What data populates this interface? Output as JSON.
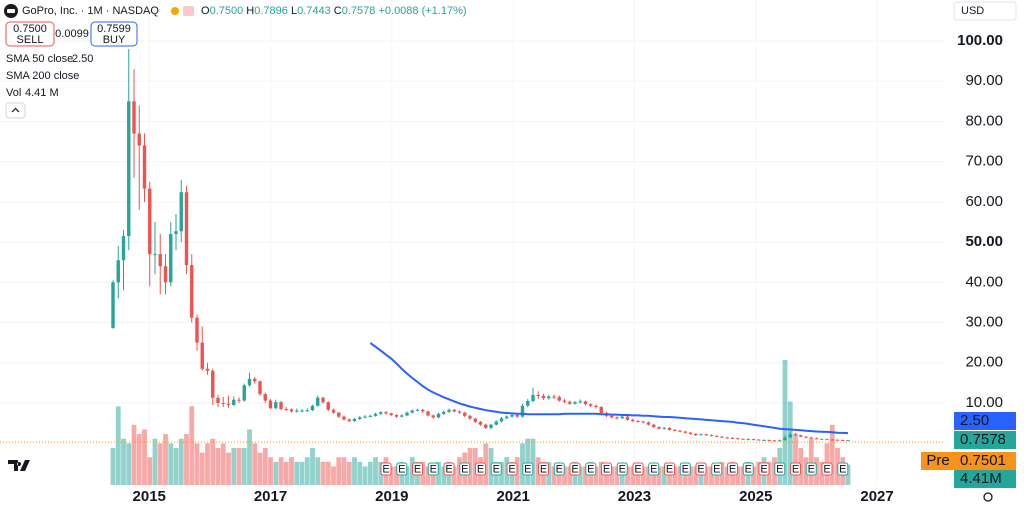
{
  "header": {
    "symbol": "GoPro, Inc.",
    "interval": "1M",
    "exchange": "NASDAQ",
    "ohlc": [
      {
        "label": "O",
        "value": "0.7500"
      },
      {
        "label": "H",
        "value": "0.7896"
      },
      {
        "label": "L",
        "value": "0.7443"
      },
      {
        "label": "C",
        "value": "0.7578"
      }
    ],
    "change": "+0.0088 (+1.17%)"
  },
  "trade": {
    "sell_price": "0.7500",
    "sell_label": "SELL",
    "spread": "0.0099",
    "buy_price": "0.7599",
    "buy_label": "BUY"
  },
  "indicators": [
    {
      "name": "SMA 50 close",
      "value": "2.50"
    },
    {
      "name": "SMA 200 close"
    },
    {
      "name": "Vol",
      "value": "4.41 M"
    }
  ],
  "currency": "USD",
  "chart_data": {
    "type": "candlestick",
    "open": [
      28.6,
      40.0,
      45.5,
      51.5,
      85.0,
      77.0,
      74.0,
      63.3,
      47.0,
      47.0,
      44.0,
      40.0,
      52.0,
      52.7,
      62.4,
      44.3,
      31.2,
      25.0,
      18.5,
      18.0,
      11.3,
      10.0,
      9.8,
      9.5,
      10.8,
      10.6,
      14.4,
      16.0,
      15.4,
      12.2,
      10.6,
      8.7,
      10.2,
      8.5,
      8.4,
      7.9,
      8.1,
      8.1,
      8.2,
      9.3,
      11.3,
      10.2,
      8.3,
      7.6,
      6.6,
      5.9,
      5.5,
      6.0,
      6.4,
      6.6,
      6.8,
      7.3,
      7.7,
      7.4,
      7.0,
      6.6,
      6.9,
      7.6,
      8.1,
      8.3,
      7.9,
      6.9,
      6.4,
      7.3,
      7.8,
      8.3,
      7.9,
      7.6,
      6.8,
      6.1,
      5.3,
      4.6,
      3.8,
      4.6,
      5.4,
      6.2,
      6.6,
      7.0,
      6.6,
      9.3,
      10.5,
      12.0,
      11.8,
      11.2,
      11.6,
      11.5,
      10.6,
      10.3,
      9.8,
      10.2,
      10.4,
      9.7,
      9.3,
      9.0,
      7.5,
      6.8,
      6.4,
      6.2,
      6.6,
      5.8,
      5.5,
      5.4,
      5.2,
      4.6,
      4.0,
      3.6,
      3.8,
      3.3,
      3.1,
      2.9,
      2.6,
      2.3,
      2.0,
      2.2,
      2.0,
      1.8,
      1.6,
      1.4,
      1.3,
      1.2,
      1.1,
      1.0,
      1.0,
      0.9,
      0.8,
      0.8,
      0.7,
      0.6,
      0.7,
      1.4,
      2.2,
      2.0,
      1.6,
      1.4,
      1.2,
      1.1,
      1.0,
      0.9,
      0.85,
      0.8,
      0.75
    ],
    "high": [
      40.5,
      49,
      53,
      98,
      93,
      84,
      77,
      65,
      55,
      52,
      47,
      55,
      57,
      65.5,
      64,
      47,
      32,
      29,
      20,
      18.5,
      12,
      11.5,
      11.8,
      11.6,
      11.4,
      14.8,
      17.5,
      16.5,
      15.6,
      12.6,
      11,
      10.8,
      10.5,
      9,
      8.7,
      8.6,
      8.5,
      8.7,
      9.6,
      11.8,
      11.5,
      10.4,
      8.6,
      7.8,
      6.9,
      6.2,
      6.3,
      6.8,
      7.0,
      7.1,
      7.6,
      8.0,
      8.0,
      7.6,
      7.2,
      7.2,
      7.9,
      8.4,
      8.6,
      8.5,
      8.1,
      7.1,
      7.6,
      8.1,
      8.6,
      8.5,
      8.1,
      7.8,
      7.0,
      6.3,
      5.5,
      4.9,
      4.8,
      5.7,
      6.5,
      6.9,
      7.3,
      7.3,
      9.8,
      11.0,
      13.8,
      12.9,
      12.3,
      12.0,
      12.1,
      11.9,
      11.0,
      10.6,
      10.5,
      10.9,
      10.6,
      9.9,
      9.6,
      9.2,
      7.8,
      7.0,
      6.7,
      6.8,
      6.8,
      6.1,
      5.8,
      5.6,
      5.4,
      4.8,
      4.2,
      4.0,
      4.0,
      3.5,
      3.3,
      3.1,
      2.8,
      2.5,
      2.4,
      2.4,
      2.2,
      2.0,
      1.8,
      1.6,
      1.5,
      1.4,
      1.2,
      1.2,
      1.1,
      1.0,
      0.95,
      0.9,
      0.8,
      0.9,
      2.0,
      2.9,
      2.6,
      2.1,
      1.8,
      1.6,
      1.4,
      1.2,
      1.1,
      1.0,
      0.95,
      0.88,
      0.7896
    ],
    "low": [
      28.5,
      36,
      38,
      48,
      66,
      58,
      60,
      39,
      42,
      37,
      37,
      39,
      48,
      50,
      42,
      30,
      23,
      18,
      17,
      9.5,
      9.0,
      9.0,
      8.8,
      9.2,
      10.0,
      10.3,
      14.0,
      14.8,
      11.8,
      10.0,
      8.5,
      8.5,
      8.2,
      8.0,
      7.6,
      7.6,
      7.7,
      7.8,
      8.0,
      9.1,
      9.8,
      8.0,
      7.3,
      6.3,
      5.6,
      5.2,
      5.3,
      5.8,
      6.2,
      6.4,
      6.6,
      7.0,
      7.1,
      6.7,
      6.3,
      6.4,
      6.7,
      7.4,
      7.9,
      7.5,
      6.6,
      6.1,
      6.2,
      7.0,
      7.5,
      7.6,
      7.3,
      6.5,
      5.8,
      5.0,
      4.3,
      3.5,
      3.4,
      4.4,
      5.2,
      6.0,
      6.4,
      6.3,
      6.4,
      8.9,
      10.1,
      11.0,
      10.8,
      10.8,
      11.0,
      10.3,
      9.9,
      9.5,
      9.6,
      9.9,
      9.4,
      9.0,
      8.6,
      7.2,
      6.5,
      6.1,
      5.9,
      6.0,
      5.6,
      5.2,
      5.1,
      4.9,
      4.4,
      3.8,
      3.4,
      3.4,
      3.1,
      2.9,
      2.7,
      2.4,
      2.1,
      1.8,
      1.9,
      1.8,
      1.7,
      1.5,
      1.3,
      1.2,
      1.1,
      1.0,
      0.9,
      0.9,
      0.85,
      0.75,
      0.7,
      0.65,
      0.55,
      0.58,
      0.7,
      1.3,
      1.8,
      1.5,
      1.3,
      1.1,
      1.0,
      0.9,
      0.85,
      0.8,
      0.74,
      0.7,
      0.7443
    ],
    "close": [
      40.0,
      45.5,
      51.5,
      85.0,
      77.0,
      74.0,
      63.3,
      47.0,
      47.0,
      44.0,
      40.0,
      52.0,
      52.7,
      62.4,
      44.3,
      31.2,
      25.0,
      18.5,
      18.0,
      11.3,
      10.0,
      9.8,
      9.5,
      10.8,
      10.6,
      14.4,
      16.0,
      15.4,
      12.2,
      10.6,
      8.7,
      10.2,
      8.5,
      8.4,
      7.9,
      8.1,
      8.1,
      8.2,
      9.3,
      11.3,
      10.2,
      8.3,
      7.6,
      6.6,
      5.9,
      5.5,
      6.0,
      6.4,
      6.6,
      6.8,
      7.3,
      7.7,
      7.4,
      7.0,
      6.6,
      6.9,
      7.6,
      8.1,
      8.3,
      7.9,
      6.9,
      6.4,
      7.3,
      7.8,
      8.3,
      7.9,
      7.6,
      6.8,
      6.1,
      5.3,
      4.6,
      3.8,
      4.6,
      5.4,
      6.2,
      6.6,
      7.0,
      6.6,
      9.3,
      10.5,
      12.0,
      11.8,
      11.2,
      11.6,
      11.5,
      10.6,
      10.3,
      9.8,
      10.2,
      10.4,
      9.7,
      9.3,
      9.0,
      7.5,
      6.8,
      6.4,
      6.2,
      6.6,
      5.8,
      5.5,
      5.4,
      5.2,
      4.6,
      4.0,
      3.6,
      3.8,
      3.3,
      3.1,
      2.9,
      2.6,
      2.3,
      2.0,
      2.2,
      2.0,
      1.8,
      1.6,
      1.4,
      1.3,
      1.2,
      1.1,
      1.0,
      1.0,
      0.9,
      0.8,
      0.8,
      0.7,
      0.6,
      0.7,
      1.4,
      2.2,
      2.0,
      1.6,
      1.4,
      1.2,
      1.1,
      1.0,
      0.9,
      0.85,
      0.8,
      0.749,
      0.7578
    ],
    "volume": [
      8,
      17,
      10,
      9,
      13,
      11,
      12,
      6,
      10,
      9,
      11,
      9,
      8,
      10,
      11,
      17,
      9,
      7,
      9,
      10,
      8,
      9,
      7,
      8,
      8,
      8,
      12,
      9,
      7,
      8,
      6,
      5,
      6,
      5,
      6,
      5,
      5,
      6,
      8,
      6,
      5,
      5,
      4,
      6,
      6,
      5,
      6,
      5,
      4,
      5,
      6,
      5,
      6,
      4,
      4,
      5,
      4,
      6,
      5,
      5,
      4,
      4,
      5,
      4,
      5,
      4,
      6,
      7,
      8,
      8,
      6,
      9,
      8,
      5,
      5,
      6,
      5,
      6,
      9,
      10,
      10,
      6,
      5,
      5,
      4,
      4,
      4,
      4,
      5,
      4,
      4,
      5,
      4,
      5,
      4,
      4,
      4,
      4,
      4,
      4,
      4,
      4,
      4,
      4,
      4,
      4,
      4,
      4,
      4,
      4,
      4,
      4,
      4,
      4,
      4,
      4,
      5,
      4,
      5,
      4,
      4,
      5,
      4,
      5,
      6,
      5,
      6,
      8,
      27,
      18,
      11,
      8,
      6,
      10,
      6,
      5,
      9,
      13,
      8,
      6,
      4.41
    ],
    "sma50": [
      null,
      null,
      null,
      null,
      null,
      null,
      null,
      null,
      null,
      null,
      null,
      null,
      null,
      null,
      null,
      null,
      null,
      null,
      null,
      null,
      null,
      null,
      null,
      null,
      null,
      null,
      null,
      null,
      null,
      null,
      null,
      null,
      null,
      null,
      null,
      null,
      null,
      null,
      null,
      null,
      null,
      null,
      null,
      null,
      null,
      null,
      null,
      null,
      null,
      24.9,
      24.0,
      23.0,
      22.0,
      21.0,
      19.8,
      18.5,
      17.3,
      16.2,
      15.2,
      14.2,
      13.3,
      12.6,
      12.0,
      11.4,
      10.9,
      10.4,
      9.9,
      9.5,
      9.1,
      8.8,
      8.5,
      8.2,
      8.0,
      7.8,
      7.6,
      7.5,
      7.4,
      7.3,
      7.3,
      7.2,
      7.2,
      7.2,
      7.2,
      7.2,
      7.2,
      7.2,
      7.3,
      7.3,
      7.3,
      7.3,
      7.3,
      7.3,
      7.3,
      7.2,
      7.2,
      7.1,
      7.1,
      7.0,
      7.0,
      6.9,
      6.9,
      6.8,
      6.8,
      6.7,
      6.6,
      6.5,
      6.5,
      6.4,
      6.3,
      6.2,
      6.1,
      6.0,
      5.9,
      5.8,
      5.7,
      5.6,
      5.5,
      5.4,
      5.3,
      5.1,
      5.0,
      4.8,
      4.6,
      4.4,
      4.2,
      4.0,
      3.8,
      3.6,
      3.5,
      3.4,
      3.3,
      3.2,
      3.1,
      3.0,
      2.9,
      2.85,
      2.8,
      2.7,
      2.6,
      2.55,
      2.5
    ],
    "up_color": "#26a69a",
    "down_color": "#ef5350",
    "sma_color": "#2962ff",
    "ylim": [
      -10.4,
      110.2
    ],
    "yticks": [
      {
        "value": 10,
        "label": "10.00"
      },
      {
        "value": 20,
        "label": "20.00"
      },
      {
        "value": 30,
        "label": "30.00"
      },
      {
        "value": 40,
        "label": "40.00"
      },
      {
        "value": 50,
        "label": "50.00"
      },
      {
        "value": 60,
        "label": "60.00"
      },
      {
        "value": 70,
        "label": "70.00"
      },
      {
        "value": 80,
        "label": "80.00"
      },
      {
        "value": 90,
        "label": "90.00"
      },
      {
        "value": 100,
        "label": "100.00"
      }
    ],
    "xlim": [
      2012.54,
      2028.12
    ],
    "xticks": [
      2015,
      2017,
      2019,
      2021,
      2023,
      2025,
      2027
    ],
    "grid": true,
    "tags": [
      {
        "value": 2.5,
        "label": "2.50",
        "color": "#2962ff"
      },
      {
        "value": 0.7578,
        "label": "0.7578",
        "color": "#26a69a"
      },
      {
        "value": 0.7501,
        "label": "0.7501",
        "color": "#f7931a",
        "prefix": "Pre"
      },
      {
        "value": 4.41,
        "label": "4.41M",
        "color": "#26a69a"
      }
    ],
    "earnings_marker": "E"
  }
}
